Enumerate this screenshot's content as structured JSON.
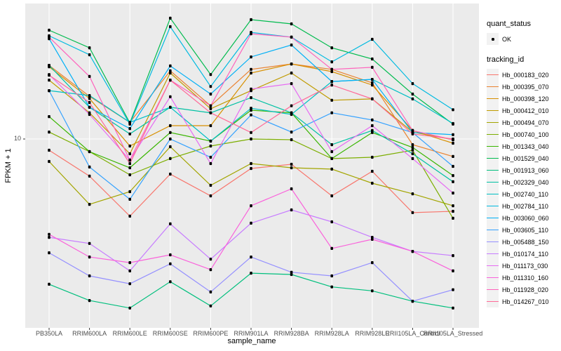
{
  "figure": {
    "y_axis": {
      "title": "FPKM + 1",
      "tick_label": "10"
    },
    "x_axis": {
      "title": "sample_name"
    },
    "colors": {
      "panel_bg": "#EBEBEB",
      "gridline": "#FFFFFF",
      "tick_mark": "#333333",
      "tick_text": "#4D4D4D",
      "marker": "#000000",
      "legend_key_bg": "#F2F2F2"
    }
  },
  "legend": {
    "quant_status_title": "quant_status",
    "ok_label": "OK",
    "tracking_id_title": "tracking_id"
  },
  "chart_data": {
    "type": "line",
    "title": "",
    "xlabel": "sample_name",
    "ylabel": "FPKM + 1",
    "yscale": "log10",
    "ytick_labels": [
      10
    ],
    "ylim": [
      1.0,
      62
    ],
    "grid": "major-only",
    "legend_position": "right",
    "marker": {
      "legend": "quant_status = OK",
      "shape": "point",
      "color": "#000000"
    },
    "x_categories": [
      "PB350LA",
      "RRIM600LA",
      "RRIM600LE",
      "RRIM600SE",
      "RRIM600PE",
      "RRIM901LA",
      "RRIM928BA",
      "RRIM928LA",
      "RRIM928LE",
      "RRII105LA_Control",
      "RRII105LA_Stressed"
    ],
    "series": [
      {
        "name": "Hb_000183_020",
        "color": "#F8766D",
        "values": [
          8.6,
          6.08,
          3.56,
          6.25,
          4.67,
          6.74,
          7.13,
          4.67,
          6.49,
          3.73,
          3.8
        ]
      },
      {
        "name": "Hb_000395_070",
        "color": "#EA8331",
        "values": [
          26.8,
          17.7,
          12.5,
          24.9,
          15.6,
          25.4,
          27.3,
          25.4,
          21.2,
          9.27,
          7.91
        ]
      },
      {
        "name": "Hb_000398_120",
        "color": "#D89000",
        "values": [
          26.3,
          17.2,
          9.1,
          11.96,
          11.96,
          24.2,
          27.3,
          24.65,
          20.6,
          11.2,
          9.45
        ]
      },
      {
        "name": "Hb_000412_010",
        "color": "#C09B00",
        "values": [
          22.0,
          14.2,
          8.21,
          24.2,
          15.0,
          19.1,
          24.2,
          16.8,
          17.1,
          10.98,
          9.91
        ]
      },
      {
        "name": "Hb_000494_070",
        "color": "#A3A500",
        "values": [
          7.4,
          4.17,
          4.94,
          9.02,
          5.38,
          7.2,
          6.8,
          6.68,
          5.53,
          4.8,
          4.09
        ]
      },
      {
        "name": "Hb_000740_100",
        "color": "#7CAE00",
        "values": [
          10.98,
          8.44,
          6.19,
          7.69,
          9.1,
          10.0,
          9.91,
          7.69,
          7.83,
          8.6,
          3.46
        ]
      },
      {
        "name": "Hb_001343_040",
        "color": "#39B600",
        "values": [
          13.5,
          8.44,
          6.8,
          10.9,
          9.72,
          14.7,
          14.2,
          7.69,
          10.9,
          8.93,
          6.13
        ]
      },
      {
        "name": "Hb_001529_040",
        "color": "#00BB4E",
        "values": [
          42.9,
          33.9,
          12.4,
          50.4,
          23.7,
          49.4,
          46.7,
          33.9,
          29.2,
          18.25,
          12.2
        ]
      },
      {
        "name": "Hb_001913_060",
        "color": "#00BF7D",
        "values": [
          1.43,
          1.15,
          1.04,
          1.48,
          1.07,
          1.66,
          1.63,
          1.38,
          1.31,
          1.14,
          1.04
        ]
      },
      {
        "name": "Hb_002329_040",
        "color": "#00C1A3",
        "values": [
          26.8,
          15.3,
          10.7,
          15.3,
          14.2,
          17.4,
          14.2,
          9.27,
          11.2,
          8.21,
          5.64
        ]
      },
      {
        "name": "Hb_002740_110",
        "color": "#00BFC4",
        "values": [
          19.1,
          17.9,
          12.5,
          15.3,
          9.72,
          15.1,
          13.9,
          21.6,
          22.2,
          17.1,
          12.3
        ]
      },
      {
        "name": "Hb_002784_110",
        "color": "#00BAE0",
        "values": [
          39.8,
          30.9,
          12.2,
          45.0,
          20.2,
          41.7,
          39.1,
          28.1,
          38.0,
          21.0,
          14.8
        ]
      },
      {
        "name": "Hb_003060_060",
        "color": "#00B0F6",
        "values": [
          38.3,
          15.3,
          11.5,
          26.6,
          18.25,
          30.0,
          35.2,
          21.6,
          22.2,
          10.9,
          10.6
        ]
      },
      {
        "name": "Hb_003605_110",
        "color": "#35A2FF",
        "values": [
          19.1,
          6.87,
          4.46,
          10.0,
          7.83,
          13.8,
          10.98,
          14.2,
          12.9,
          10.9,
          6.93
        ]
      },
      {
        "name": "Hb_005488_150",
        "color": "#9590FF",
        "values": [
          2.18,
          1.6,
          1.44,
          1.88,
          1.29,
          2.06,
          1.68,
          1.6,
          1.91,
          1.14,
          1.33
        ]
      },
      {
        "name": "Hb_010174_110",
        "color": "#C77CFF",
        "values": [
          2.68,
          2.47,
          1.71,
          3.21,
          2.0,
          3.24,
          3.87,
          3.3,
          2.68,
          2.22,
          2.1
        ]
      },
      {
        "name": "Hb_011173_030",
        "color": "#E76BF3",
        "values": [
          23.7,
          13.9,
          7.54,
          17.6,
          7.2,
          19.5,
          21.0,
          8.44,
          11.96,
          7.69,
          4.85
        ]
      },
      {
        "name": "Hb_011310_160",
        "color": "#FA62DB",
        "values": [
          2.79,
          2.06,
          1.91,
          2.12,
          1.74,
          4.09,
          5.13,
          2.31,
          2.61,
          2.22,
          1.71
        ]
      },
      {
        "name": "Hb_011928_020",
        "color": "#FF62BC",
        "values": [
          39.1,
          23.1,
          7.54,
          22.0,
          15.6,
          40.9,
          39.1,
          25.4,
          26.1,
          11.2,
          9.91
        ]
      },
      {
        "name": "Hb_014267_010",
        "color": "#FF6A98",
        "values": [
          23.5,
          16.3,
          7.2,
          22.0,
          14.2,
          10.9,
          15.6,
          20.6,
          17.1,
          10.7,
          10.0
        ]
      }
    ]
  }
}
